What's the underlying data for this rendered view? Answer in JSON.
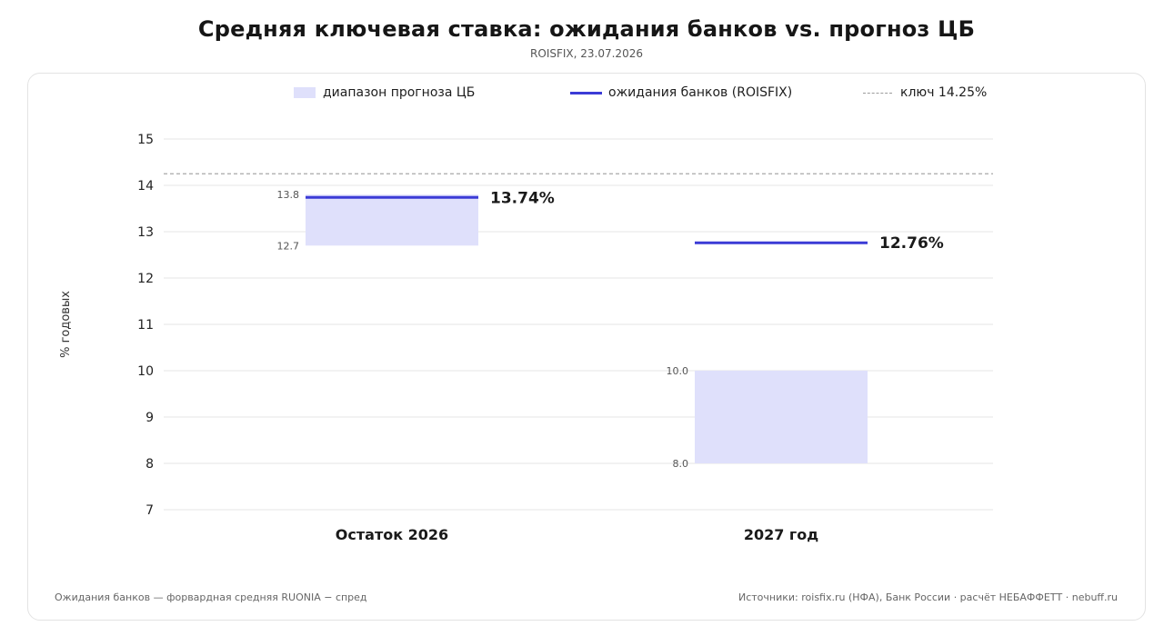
{
  "header": {
    "title": "Средняя ключевая ставка: ожидания банков vs. прогноз ЦБ",
    "subtitle": "ROISFIX, 23.07.2026"
  },
  "legend": {
    "range_label": "диапазон прогноза ЦБ",
    "expectation_label": "ожидания банков (ROISFIX)",
    "key_label": "ключ 14.25%"
  },
  "footer": {
    "left": "Ожидания банков — форвардная средняя RUONIA − спред",
    "right": "Источники: roisfix.ru (НФА), Банк России · расчёт НЕБАФФЕТТ · nebuff.ru"
  },
  "colors": {
    "range_fill": "#dfe0fb",
    "expectation_line": "#3b3bd6",
    "key_line": "#a8a8a8",
    "grid": "#e6e6e6"
  },
  "chart_data": {
    "type": "bar",
    "title": "Средняя ключевая ставка: ожидания банков vs. прогноз ЦБ",
    "subtitle": "ROISFIX, 23.07.2026",
    "ylabel": "% годовых",
    "xlabel": "",
    "ylim": [
      7,
      15
    ],
    "yticks": [
      7,
      8,
      9,
      10,
      11,
      12,
      13,
      14,
      15
    ],
    "grid": true,
    "legend_position": "top",
    "categories": [
      "Остаток 2026",
      "2027 год"
    ],
    "cb_range": [
      {
        "low": 12.7,
        "high": 13.8,
        "low_label": "12.7",
        "high_label": "13.8"
      },
      {
        "low": 8.0,
        "high": 10.0,
        "low_label": "8.0",
        "high_label": "10.0"
      }
    ],
    "bank_expectations": [
      {
        "value": 13.74,
        "label": "13.74%"
      },
      {
        "value": 12.76,
        "label": "12.76%"
      }
    ],
    "key_rate": 14.25
  }
}
